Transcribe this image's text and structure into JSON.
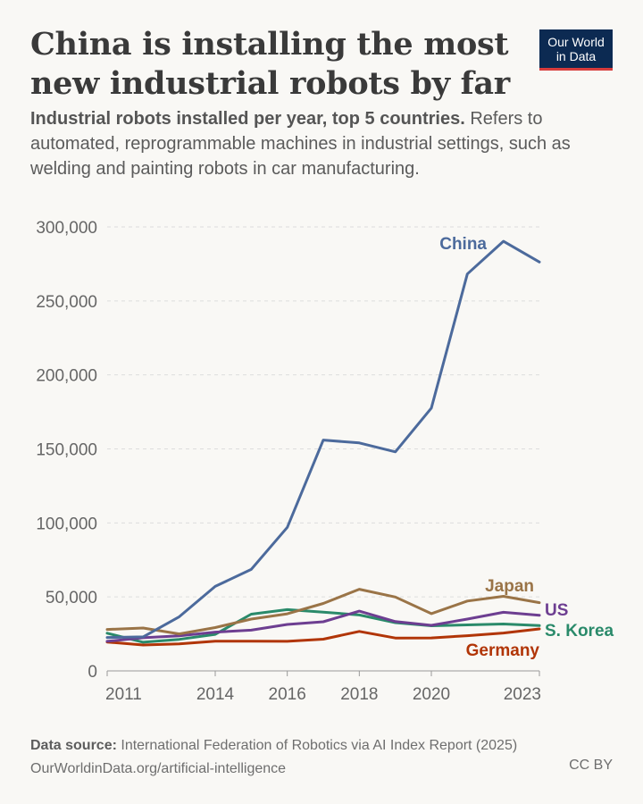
{
  "header": {
    "title": "China is installing the most new industrial robots by far",
    "subtitle_bold": "Industrial robots installed per year, top 5 countries.",
    "subtitle_rest": " Refers to automated, reprogrammable machines in industrial settings, such as welding and painting robots in car manufacturing."
  },
  "logo": {
    "line1": "Our World",
    "line2": "in Data"
  },
  "footer": {
    "source_label": "Data source:",
    "source_text": " International Federation of Robotics via AI Index Report (2025)",
    "url": "OurWorldinData.org/artificial-intelligence",
    "license": "CC BY"
  },
  "colors": {
    "China": "#4c6a9c",
    "Japan": "#9a7447",
    "US": "#6d3e91",
    "S. Korea": "#2a8a6a",
    "Germany": "#b13507",
    "grid": "#dddddd",
    "axis_text": "#666666"
  },
  "chart_data": {
    "type": "line",
    "x": [
      2011,
      2012,
      2013,
      2014,
      2015,
      2016,
      2017,
      2018,
      2019,
      2020,
      2021,
      2022,
      2023
    ],
    "x_ticks": [
      "2011",
      "2014",
      "2016",
      "2018",
      "2020",
      "2023"
    ],
    "y_ticks": [
      "0",
      "50,000",
      "100,000",
      "150,000",
      "200,000",
      "250,000",
      "300,000"
    ],
    "ylim": [
      0,
      300000
    ],
    "xlim": [
      2011,
      2023
    ],
    "grid": "horizontal dashed",
    "legend": "inline labels at line ends",
    "series": [
      {
        "name": "China",
        "values": [
          22577,
          22987,
          36560,
          57096,
          68556,
          97000,
          156000,
          154032,
          148000,
          177600,
          268195,
          290258,
          276288
        ]
      },
      {
        "name": "Japan",
        "values": [
          28000,
          29000,
          25000,
          29300,
          35000,
          38600,
          45600,
          55200,
          49900,
          38700,
          47200,
          50400,
          46100
        ]
      },
      {
        "name": "US",
        "values": [
          20000,
          22400,
          23700,
          26200,
          27500,
          31400,
          33200,
          40400,
          33300,
          30800,
          35000,
          39600,
          37600
        ]
      },
      {
        "name": "S. Korea",
        "values": [
          25500,
          19400,
          21300,
          24700,
          38300,
          41400,
          39700,
          37800,
          32600,
          30500,
          31100,
          31700,
          30600
        ]
      },
      {
        "name": "Germany",
        "values": [
          19500,
          17500,
          18300,
          20100,
          20100,
          20000,
          21400,
          26700,
          22200,
          22300,
          23800,
          25600,
          28400
        ]
      }
    ]
  }
}
